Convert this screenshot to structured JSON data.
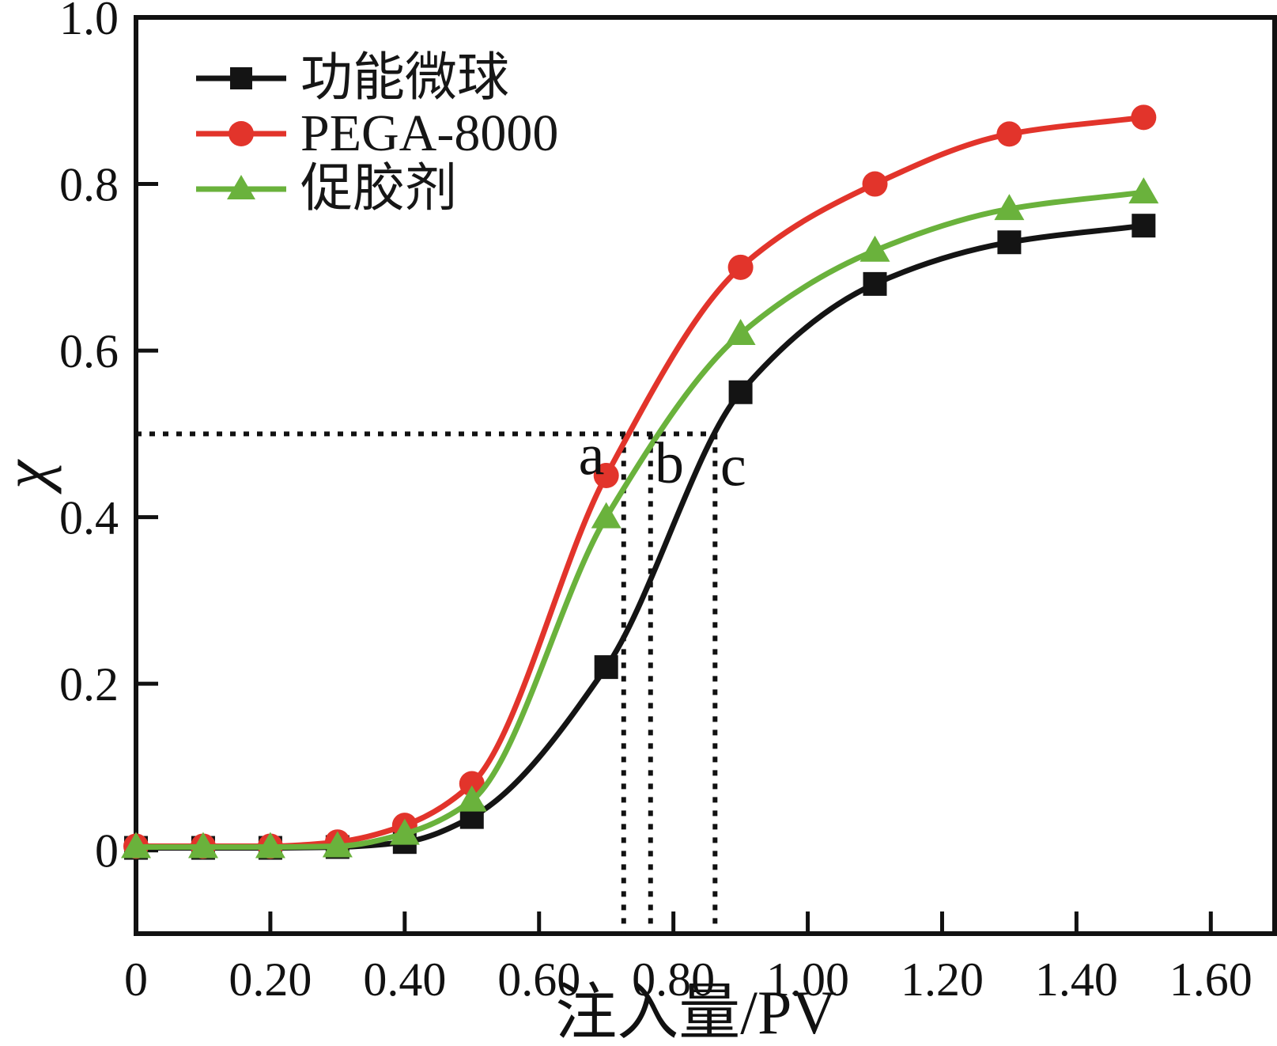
{
  "figure": {
    "background": "#ffffff",
    "text_color": "#111111"
  },
  "chart_data": {
    "type": "line",
    "title": "",
    "xlabel": "注入量/PV",
    "ylabel": "χ",
    "xlim": [
      0,
      1.695
    ],
    "ylim": [
      -0.1,
      1.0
    ],
    "grid": false,
    "legend_position": "top-left-inside",
    "x_ticks": {
      "values": [
        0,
        0.2,
        0.4,
        0.6,
        0.8,
        1.0,
        1.2,
        1.4,
        1.6
      ],
      "labels": [
        "0",
        "0.20",
        "0.40",
        "0.60",
        "0.80",
        "1.00",
        "1.20",
        "1.40",
        "1.60"
      ]
    },
    "y_ticks": {
      "values": [
        0,
        0.2,
        0.4,
        0.6,
        0.8,
        1.0
      ],
      "labels": [
        "0",
        "0.2",
        "0.4",
        "0.6",
        "0.8",
        "1.0"
      ]
    },
    "x": [
      0,
      0.1,
      0.2,
      0.3,
      0.4,
      0.5,
      0.7,
      0.9,
      1.1,
      1.3,
      1.5
    ],
    "series": [
      {
        "name": "功能微球",
        "color": "#141414",
        "marker": "square",
        "values": [
          0.003,
          0.003,
          0.003,
          0.004,
          0.01,
          0.04,
          0.22,
          0.55,
          0.68,
          0.73,
          0.75
        ]
      },
      {
        "name": "PEGA-8000",
        "color": "#e2342b",
        "marker": "circle",
        "values": [
          0.005,
          0.005,
          0.005,
          0.01,
          0.03,
          0.08,
          0.45,
          0.7,
          0.8,
          0.86,
          0.88
        ]
      },
      {
        "name": "促胶剂",
        "color": "#6ab23c",
        "marker": "triangle",
        "values": [
          0.004,
          0.004,
          0.004,
          0.005,
          0.02,
          0.06,
          0.4,
          0.62,
          0.72,
          0.77,
          0.79
        ]
      }
    ],
    "reference_lines": {
      "color": "#111111",
      "hline": {
        "y": 0.5,
        "x_start": 0,
        "x_end": 0.862
      },
      "vlines": [
        {
          "label": "a",
          "x": 0.726
        },
        {
          "label": "b",
          "x": 0.766
        },
        {
          "label": "c",
          "x": 0.862
        }
      ],
      "vline_y_top": 0.5,
      "vline_y_bottom": -0.1
    },
    "annotations": [
      {
        "text": "a",
        "x": 0.678,
        "y": 0.476
      },
      {
        "text": "b",
        "x": 0.794,
        "y": 0.466
      },
      {
        "text": "c",
        "x": 0.889,
        "y": 0.463
      }
    ]
  }
}
